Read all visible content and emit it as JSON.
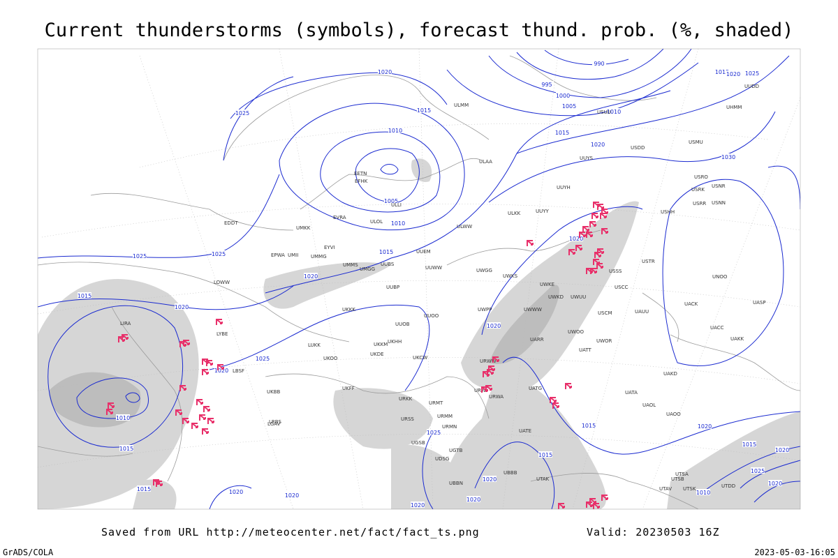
{
  "header": {
    "title": "Current thunderstorms (symbols), forecast thund. prob. (%, shaded)"
  },
  "footer": {
    "source": "Saved from URL http://meteocenter.net/fact/fact_ts.png",
    "valid": "Valid: 20230503 16Z",
    "software": "GrADS/COLA",
    "timestamp": "2023-05-03-16:05"
  },
  "isobar_labels": [
    "1020",
    "1015",
    "1025",
    "1010",
    "1005",
    "1010",
    "1015",
    "1020",
    "1025",
    "1025",
    "1015",
    "1020",
    "1020",
    "1025",
    "1020",
    "1010",
    "1015",
    "1015",
    "1020",
    "1020",
    "1020",
    "1020",
    "1020",
    "1025",
    "1015",
    "1015",
    "1020",
    "1015",
    "1020",
    "1025",
    "1020",
    "1010",
    "990",
    "995",
    "1000",
    "1005",
    "1010",
    "1015",
    "1020",
    "1030",
    "1015",
    "1020",
    "1025",
    "1020"
  ],
  "stations": [
    "ULMM",
    "ULAA",
    "UUYS",
    "UUYH",
    "UUYY",
    "ULKK",
    "ULWW",
    "UUEM",
    "UUWW",
    "UWGG",
    "UWKS",
    "UWKE",
    "UWKD",
    "UWUU",
    "USCM",
    "USCC",
    "USSS",
    "USTR",
    "USHH",
    "USRR",
    "USNN",
    "USRO",
    "USRK",
    "USNR",
    "USMU",
    "UWWW",
    "UWPP",
    "URWW",
    "URWI",
    "URWA",
    "UATG",
    "UATE",
    "URKK",
    "URMT",
    "URMM",
    "URMN",
    "UGTB",
    "UDSG",
    "UGSB",
    "UBBB",
    "UTAK",
    "UTAV",
    "UTSA",
    "UTSB",
    "UTSK",
    "UTDD",
    "UAOO",
    "UATA",
    "UAOL",
    "UAKD",
    "UAUU",
    "UACC",
    "UAKK",
    "UACK",
    "UASP",
    "UATT",
    "UWOR",
    "UWOO",
    "UARR",
    "UNOO",
    "UKKK",
    "UKBB",
    "UKFF",
    "UKOO",
    "UKDE",
    "UKKM",
    "UKHH",
    "UUOB",
    "UUOO",
    "UKCW",
    "URSS",
    "LUKK",
    "LRBS",
    "UBBN",
    "EDDT",
    "EPWA",
    "EYVI",
    "EVRA",
    "EETN",
    "EFHK",
    "UMMS",
    "UMGG",
    "UUBS",
    "UUBP",
    "UMII",
    "UMKK",
    "UMMG",
    "LOWW",
    "LIRA",
    "LYBE",
    "LBSF",
    "LGAV",
    "ULLI",
    "ULOL",
    "UUDD",
    "USDD",
    "USUU",
    "UHMM"
  ]
}
